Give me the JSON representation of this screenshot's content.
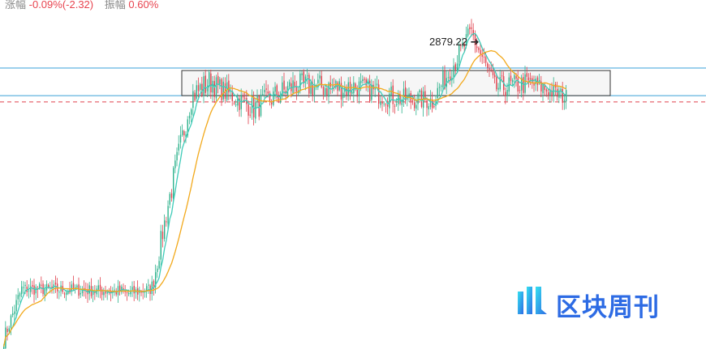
{
  "header": {
    "change_label": "涨幅",
    "change_value": "-0.09%(-2.32)",
    "amplitude_label": "振幅",
    "amplitude_value": "0.60%"
  },
  "logo": {
    "text": "区块周刊"
  },
  "colors": {
    "up": "#2fb28d",
    "down": "#e0404c",
    "ma_fast": "#3ecbb8",
    "ma_slow": "#f2a91c",
    "hline": "#3aa0d8",
    "dash": "#e0404c",
    "box_fill": "#f2f2f2",
    "logo": "#2d6be4"
  },
  "chart_data": {
    "type": "candlestick",
    "title": "",
    "xlabel": "",
    "ylabel": "",
    "ylim": [
      2620,
      2895
    ],
    "annotations": [
      {
        "text": "2879.22 ➔",
        "value": 2879.22,
        "kind": "high-marker"
      }
    ],
    "horizontal_lines": [
      {
        "value": 2844,
        "style": "solid",
        "color": "#3aa0d8"
      },
      {
        "value": 2822,
        "style": "solid",
        "color": "#3aa0d8"
      },
      {
        "value": 2817,
        "style": "dashed",
        "color": "#e0404c"
      }
    ],
    "range_box": {
      "y_top": 2842,
      "y_bottom": 2822
    },
    "segments": [
      {
        "from": 0,
        "to": 10,
        "start": 2628,
        "end": 2668,
        "noise": 6
      },
      {
        "from": 10,
        "to": 68,
        "start": 2668,
        "end": 2666,
        "noise": 5
      },
      {
        "from": 68,
        "to": 83,
        "start": 2664,
        "end": 2668,
        "noise": 5
      },
      {
        "from": 83,
        "to": 92,
        "start": 2668,
        "end": 2735,
        "noise": 9
      },
      {
        "from": 92,
        "to": 105,
        "start": 2735,
        "end": 2822,
        "noise": 11
      },
      {
        "from": 105,
        "to": 118,
        "start": 2822,
        "end": 2835,
        "noise": 11
      },
      {
        "from": 118,
        "to": 140,
        "start": 2830,
        "end": 2812,
        "noise": 9
      },
      {
        "from": 140,
        "to": 165,
        "start": 2812,
        "end": 2832,
        "noise": 10
      },
      {
        "from": 165,
        "to": 195,
        "start": 2830,
        "end": 2828,
        "noise": 10
      },
      {
        "from": 195,
        "to": 220,
        "start": 2830,
        "end": 2820,
        "noise": 9
      },
      {
        "from": 220,
        "to": 240,
        "start": 2820,
        "end": 2818,
        "noise": 8
      },
      {
        "from": 240,
        "to": 262,
        "start": 2818,
        "end": 2872,
        "noise": 9
      },
      {
        "from": 262,
        "to": 275,
        "start": 2872,
        "end": 2828,
        "noise": 10
      },
      {
        "from": 275,
        "to": 295,
        "start": 2828,
        "end": 2832,
        "noise": 9
      },
      {
        "from": 295,
        "to": 316,
        "start": 2832,
        "end": 2820,
        "noise": 7
      }
    ]
  }
}
